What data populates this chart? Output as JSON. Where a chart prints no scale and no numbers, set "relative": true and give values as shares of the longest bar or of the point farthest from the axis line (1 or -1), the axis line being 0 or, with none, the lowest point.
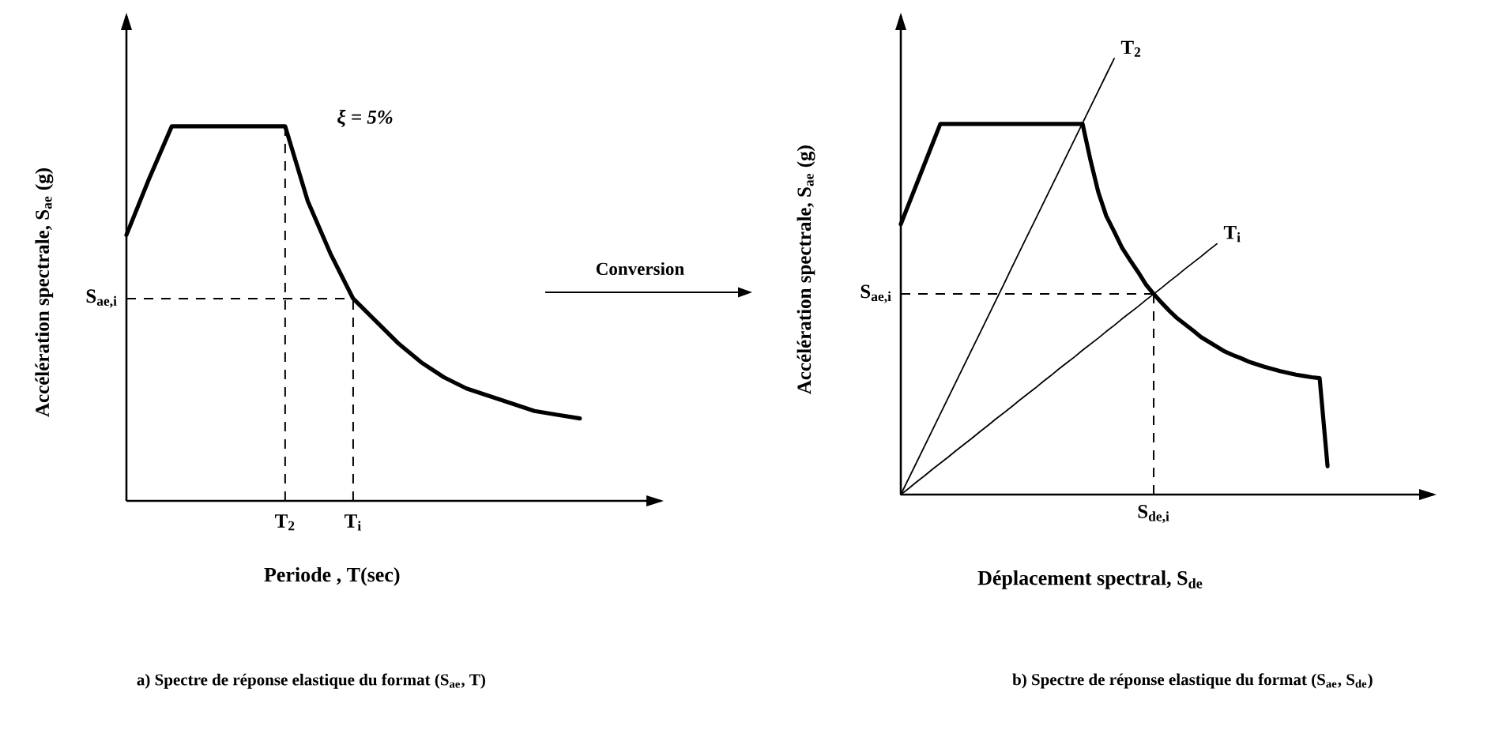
{
  "chart_data": [
    {
      "type": "line",
      "title": "a) Spectre de réponse elastique du format  (S$_{ae}$, T)",
      "xlabel": "Periode , T(sec)",
      "ylabel": "Accélération spectrale, S$_{ae}$ (g)",
      "relative": true,
      "categories": [
        null,
        null,
        null,
        null,
        null,
        null,
        null,
        "T$_{2}$",
        null,
        null,
        "T$_{i}$",
        null,
        null,
        null,
        null,
        null,
        null,
        null,
        null,
        null,
        null
      ],
      "series": [
        {
          "color": "#000000",
          "values": [
            0.71,
            0.86,
            1,
            1,
            1,
            1,
            1,
            1,
            0.8,
            0.66,
            0.54,
            0.48,
            0.42,
            0.37,
            0.33,
            0.3,
            0.28,
            0.26,
            0.24,
            0.23,
            0.22
          ]
        }
      ],
      "ref_lines": [
        {
          "axis": "x",
          "value": "T$_{2}$",
          "line_style": "dashed"
        },
        {
          "axis": "x",
          "value": "T$_{i}$",
          "line_style": "dashed"
        },
        {
          "axis": "y",
          "value": 0.54,
          "label": "S$_{ae,i}$",
          "line_style": "dashed"
        }
      ],
      "annotations": [
        "ξ = 5%",
        "Conversion"
      ]
    },
    {
      "type": "line",
      "title": "b) Spectre de réponse elastique du format (S$_{ae}$, S$_{de}$)",
      "xlabel": "Déplacement spectral, S$_{de}$",
      "ylabel": "Accélération spectrale, S$_{ae}$ (g)",
      "relative": true,
      "categories": [
        null,
        null,
        null,
        null,
        null,
        null,
        null,
        null,
        null,
        null,
        null,
        null,
        null,
        null,
        null,
        null,
        null,
        null,
        null,
        null,
        null,
        null,
        null,
        null,
        null,
        null,
        null,
        null,
        null,
        null,
        null,
        null,
        null,
        null,
        null,
        null,
        null,
        null,
        null,
        null,
        null,
        null,
        null,
        null,
        null,
        null,
        null,
        null,
        null,
        null,
        null,
        null,
        null,
        null,
        null
      ],
      "series": [
        {
          "color": "#000000",
          "values": [
            0.62,
            0.666,
            0.712,
            0.758,
            0.804,
            0.85,
            0.85,
            0.85,
            0.85,
            0.85,
            0.85,
            0.85,
            0.85,
            0.85,
            0.85,
            0.85,
            0.85,
            0.85,
            0.85,
            0.85,
            0.85,
            0.85,
            0.85,
            0.85,
            0.767,
            0.693,
            0.639,
            0.603,
            0.566,
            0.538,
            0.511,
            0.482,
            0.46,
            0.44,
            0.421,
            0.404,
            0.39,
            0.376,
            0.361,
            0.35,
            0.339,
            0.328,
            0.32,
            0.313,
            0.305,
            0.299,
            0.293,
            0.288,
            0.283,
            0.279,
            0.275,
            0.272,
            0.269,
            0.267,
            0.065
          ]
        },
        {
          "name": "T$_{2}$",
          "color": "#000000",
          "values": [
            0,
            0.037,
            0.074,
            0.111,
            0.148,
            0.185,
            0.222,
            0.259,
            0.296,
            0.333,
            0.37,
            0.407,
            0.444,
            0.481,
            0.519,
            0.556,
            0.593,
            0.63,
            0.667,
            0.704,
            0.741,
            0.778,
            0.815,
            0.852,
            0.889,
            0.926,
            0.963,
            1,
            null,
            null,
            null,
            null,
            null,
            null,
            null,
            null,
            null,
            null,
            null,
            null,
            null,
            null,
            null,
            null,
            null,
            null,
            null,
            null,
            null,
            null,
            null,
            null,
            null,
            null,
            null
          ]
        },
        {
          "name": "T$_{i}$",
          "color": "#000000",
          "values": [
            0,
            0.014,
            0.029,
            0.043,
            0.058,
            0.072,
            0.086,
            0.101,
            0.115,
            0.129,
            0.144,
            0.158,
            0.173,
            0.187,
            0.201,
            0.216,
            0.23,
            0.244,
            0.259,
            0.273,
            0.288,
            0.302,
            0.316,
            0.331,
            0.345,
            0.359,
            0.374,
            0.388,
            0.403,
            0.417,
            0.431,
            0.446,
            0.46,
            0.474,
            0.489,
            0.503,
            0.518,
            0.532,
            0.546,
            0.561,
            0.575,
            null,
            null,
            null,
            null,
            null,
            null,
            null,
            null,
            null,
            null,
            null,
            null,
            null,
            null
          ]
        }
      ],
      "ref_lines": [
        {
          "axis": "y",
          "value": 0.46,
          "label": "S$_{ae,i}$",
          "line_style": "dashed"
        }
      ],
      "annotations": [
        "S$_{de,i}$"
      ]
    }
  ]
}
